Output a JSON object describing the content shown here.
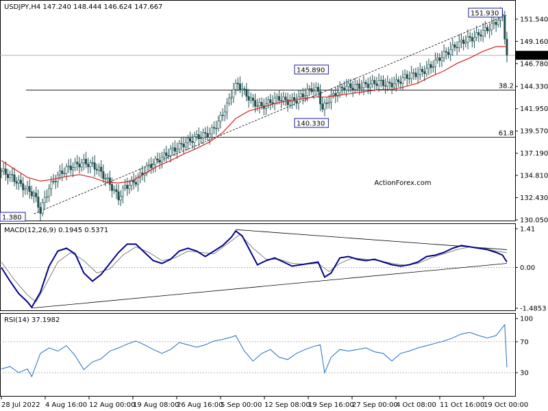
{
  "chart_data": [
    {
      "panel": "price",
      "type": "candlestick",
      "title": "USDJPY,H4  147.240 148.444 146.624 147.667",
      "watermark": "ActionForex.com",
      "ylim": [
        130.05,
        153.0
      ],
      "y_ticks": [
        "151.540",
        "149.160",
        "146.780",
        "144.330",
        "141.950",
        "139.570",
        "137.190",
        "134.810",
        "132.430",
        "130.050"
      ],
      "x_ticks": [
        "28 Jul 2022",
        "4 Aug 16:00",
        "12 Aug 00:00",
        "19 Aug 08:00",
        "26 Aug 16:00",
        "5 Sep 00:00",
        "12 Sep 08:00",
        "19 Sep 16:00",
        "27 Sep 00:00",
        "4 Oct 08:00",
        "11 Oct 16:00",
        "19 Oct 00:00"
      ],
      "current_price": "147.667",
      "price_series": [
        {
          "x": 0,
          "y": 135.3
        },
        {
          "x": 5,
          "y": 134.6
        },
        {
          "x": 10,
          "y": 133.6
        },
        {
          "x": 15,
          "y": 132.8
        },
        {
          "x": 18,
          "y": 131.0
        },
        {
          "x": 22,
          "y": 133.5
        },
        {
          "x": 26,
          "y": 134.8
        },
        {
          "x": 30,
          "y": 135.5
        },
        {
          "x": 34,
          "y": 135.9
        },
        {
          "x": 38,
          "y": 136.2
        },
        {
          "x": 42,
          "y": 135.9
        },
        {
          "x": 45,
          "y": 135.4
        },
        {
          "x": 50,
          "y": 133.9
        },
        {
          "x": 54,
          "y": 132.4
        },
        {
          "x": 57,
          "y": 133.6
        },
        {
          "x": 62,
          "y": 134.2
        },
        {
          "x": 67,
          "y": 135.6
        },
        {
          "x": 72,
          "y": 136.4
        },
        {
          "x": 78,
          "y": 137.4
        },
        {
          "x": 84,
          "y": 138.2
        },
        {
          "x": 90,
          "y": 138.9
        },
        {
          "x": 96,
          "y": 139.3
        },
        {
          "x": 100,
          "y": 140.5
        },
        {
          "x": 104,
          "y": 142.3
        },
        {
          "x": 107,
          "y": 144.1
        },
        {
          "x": 109,
          "y": 144.6
        },
        {
          "x": 112,
          "y": 143.7
        },
        {
          "x": 116,
          "y": 142.6
        },
        {
          "x": 120,
          "y": 142.2
        },
        {
          "x": 124,
          "y": 142.7
        },
        {
          "x": 128,
          "y": 143.1
        },
        {
          "x": 132,
          "y": 142.7
        },
        {
          "x": 136,
          "y": 142.9
        },
        {
          "x": 140,
          "y": 143.6
        },
        {
          "x": 143,
          "y": 144.1
        },
        {
          "x": 146,
          "y": 143.8
        },
        {
          "x": 148,
          "y": 141.8
        },
        {
          "x": 150,
          "y": 142.7
        },
        {
          "x": 154,
          "y": 143.6
        },
        {
          "x": 158,
          "y": 144.3
        },
        {
          "x": 162,
          "y": 144.3
        },
        {
          "x": 166,
          "y": 144.4
        },
        {
          "x": 170,
          "y": 144.6
        },
        {
          "x": 174,
          "y": 144.8
        },
        {
          "x": 178,
          "y": 144.5
        },
        {
          "x": 182,
          "y": 144.7
        },
        {
          "x": 186,
          "y": 145.3
        },
        {
          "x": 190,
          "y": 145.6
        },
        {
          "x": 194,
          "y": 145.9
        },
        {
          "x": 198,
          "y": 146.5
        },
        {
          "x": 202,
          "y": 147.4
        },
        {
          "x": 206,
          "y": 148.1
        },
        {
          "x": 210,
          "y": 148.8
        },
        {
          "x": 214,
          "y": 149.3
        },
        {
          "x": 218,
          "y": 149.6
        },
        {
          "x": 222,
          "y": 150.2
        },
        {
          "x": 226,
          "y": 150.8
        },
        {
          "x": 229,
          "y": 151.5
        },
        {
          "x": 231,
          "y": 151.9
        },
        {
          "x": 233,
          "y": 147.6
        }
      ],
      "ma_series": [
        {
          "x": 0,
          "y": 136.4
        },
        {
          "x": 6,
          "y": 135.5
        },
        {
          "x": 12,
          "y": 134.6
        },
        {
          "x": 18,
          "y": 134.2
        },
        {
          "x": 24,
          "y": 134.4
        },
        {
          "x": 30,
          "y": 134.7
        },
        {
          "x": 36,
          "y": 134.9
        },
        {
          "x": 42,
          "y": 134.6
        },
        {
          "x": 48,
          "y": 134.1
        },
        {
          "x": 54,
          "y": 134.0
        },
        {
          "x": 60,
          "y": 134.2
        },
        {
          "x": 66,
          "y": 135.0
        },
        {
          "x": 72,
          "y": 135.8
        },
        {
          "x": 78,
          "y": 136.4
        },
        {
          "x": 84,
          "y": 137.1
        },
        {
          "x": 90,
          "y": 137.7
        },
        {
          "x": 96,
          "y": 138.4
        },
        {
          "x": 102,
          "y": 139.4
        },
        {
          "x": 108,
          "y": 140.9
        },
        {
          "x": 114,
          "y": 141.7
        },
        {
          "x": 120,
          "y": 142.1
        },
        {
          "x": 126,
          "y": 142.5
        },
        {
          "x": 132,
          "y": 142.8
        },
        {
          "x": 138,
          "y": 143.0
        },
        {
          "x": 144,
          "y": 143.2
        },
        {
          "x": 150,
          "y": 143.2
        },
        {
          "x": 156,
          "y": 143.4
        },
        {
          "x": 162,
          "y": 143.6
        },
        {
          "x": 168,
          "y": 143.8
        },
        {
          "x": 174,
          "y": 144.0
        },
        {
          "x": 180,
          "y": 144.0
        },
        {
          "x": 186,
          "y": 144.3
        },
        {
          "x": 192,
          "y": 144.7
        },
        {
          "x": 198,
          "y": 145.4
        },
        {
          "x": 204,
          "y": 146.0
        },
        {
          "x": 210,
          "y": 146.8
        },
        {
          "x": 216,
          "y": 147.4
        },
        {
          "x": 222,
          "y": 148.1
        },
        {
          "x": 228,
          "y": 148.6
        },
        {
          "x": 233,
          "y": 148.6
        }
      ],
      "price_labels": [
        {
          "text": "151.930",
          "x": 226,
          "y": 151.93
        },
        {
          "text": "145.890",
          "x": 146,
          "y": 145.89
        },
        {
          "text": "140.330",
          "x": 146,
          "y": 140.33
        },
        {
          "text": "1.380",
          "x": 0,
          "y": 130.38
        }
      ],
      "fib_levels": [
        {
          "label": "38.2",
          "y": 143.95
        },
        {
          "label": "61.8",
          "y": 138.9
        }
      ],
      "trend_line": [
        {
          "x": 15,
          "y": 130.7
        },
        {
          "x": 233,
          "y": 152.0
        }
      ]
    },
    {
      "panel": "macd",
      "type": "line",
      "label": "MACD(12,26,9) 0.1945 0.5371",
      "ylim": [
        -1.4853,
        1.41
      ],
      "y_ticks": [
        "1.41",
        "0.00",
        "-1.4853"
      ],
      "macd_series": [
        {
          "x": 0,
          "y": 0.0
        },
        {
          "x": 4,
          "y": -0.5
        },
        {
          "x": 8,
          "y": -0.95
        },
        {
          "x": 12,
          "y": -1.25
        },
        {
          "x": 14,
          "y": -1.45
        },
        {
          "x": 18,
          "y": -0.9
        },
        {
          "x": 22,
          "y": 0.05
        },
        {
          "x": 26,
          "y": 0.6
        },
        {
          "x": 30,
          "y": 0.7
        },
        {
          "x": 34,
          "y": 0.5
        },
        {
          "x": 38,
          "y": -0.2
        },
        {
          "x": 42,
          "y": -0.5
        },
        {
          "x": 46,
          "y": -0.25
        },
        {
          "x": 50,
          "y": 0.15
        },
        {
          "x": 54,
          "y": 0.55
        },
        {
          "x": 58,
          "y": 0.85
        },
        {
          "x": 62,
          "y": 0.85
        },
        {
          "x": 66,
          "y": 0.55
        },
        {
          "x": 70,
          "y": 0.25
        },
        {
          "x": 74,
          "y": 0.15
        },
        {
          "x": 78,
          "y": 0.3
        },
        {
          "x": 82,
          "y": 0.6
        },
        {
          "x": 86,
          "y": 0.7
        },
        {
          "x": 90,
          "y": 0.6
        },
        {
          "x": 94,
          "y": 0.4
        },
        {
          "x": 98,
          "y": 0.6
        },
        {
          "x": 102,
          "y": 0.8
        },
        {
          "x": 106,
          "y": 1.1
        },
        {
          "x": 108,
          "y": 1.33
        },
        {
          "x": 111,
          "y": 1.15
        },
        {
          "x": 114,
          "y": 0.7
        },
        {
          "x": 118,
          "y": 0.1
        },
        {
          "x": 122,
          "y": 0.25
        },
        {
          "x": 126,
          "y": 0.35
        },
        {
          "x": 130,
          "y": 0.2
        },
        {
          "x": 134,
          "y": 0.05
        },
        {
          "x": 138,
          "y": 0.1
        },
        {
          "x": 142,
          "y": 0.15
        },
        {
          "x": 146,
          "y": 0.2
        },
        {
          "x": 149,
          "y": -0.35
        },
        {
          "x": 152,
          "y": -0.2
        },
        {
          "x": 156,
          "y": 0.35
        },
        {
          "x": 160,
          "y": 0.4
        },
        {
          "x": 164,
          "y": 0.3
        },
        {
          "x": 168,
          "y": 0.25
        },
        {
          "x": 172,
          "y": 0.3
        },
        {
          "x": 176,
          "y": 0.2
        },
        {
          "x": 180,
          "y": 0.1
        },
        {
          "x": 184,
          "y": 0.05
        },
        {
          "x": 188,
          "y": 0.1
        },
        {
          "x": 192,
          "y": 0.2
        },
        {
          "x": 196,
          "y": 0.4
        },
        {
          "x": 200,
          "y": 0.45
        },
        {
          "x": 204,
          "y": 0.55
        },
        {
          "x": 208,
          "y": 0.7
        },
        {
          "x": 212,
          "y": 0.8
        },
        {
          "x": 216,
          "y": 0.75
        },
        {
          "x": 220,
          "y": 0.7
        },
        {
          "x": 224,
          "y": 0.65
        },
        {
          "x": 228,
          "y": 0.55
        },
        {
          "x": 231,
          "y": 0.45
        },
        {
          "x": 233,
          "y": 0.2
        }
      ],
      "signal_series": [
        {
          "x": 0,
          "y": 0.2
        },
        {
          "x": 6,
          "y": -0.45
        },
        {
          "x": 12,
          "y": -1.0
        },
        {
          "x": 16,
          "y": -1.25
        },
        {
          "x": 20,
          "y": -0.7
        },
        {
          "x": 26,
          "y": 0.2
        },
        {
          "x": 32,
          "y": 0.55
        },
        {
          "x": 38,
          "y": 0.25
        },
        {
          "x": 44,
          "y": -0.2
        },
        {
          "x": 50,
          "y": -0.05
        },
        {
          "x": 56,
          "y": 0.45
        },
        {
          "x": 62,
          "y": 0.75
        },
        {
          "x": 68,
          "y": 0.55
        },
        {
          "x": 74,
          "y": 0.25
        },
        {
          "x": 80,
          "y": 0.35
        },
        {
          "x": 86,
          "y": 0.6
        },
        {
          "x": 92,
          "y": 0.55
        },
        {
          "x": 98,
          "y": 0.5
        },
        {
          "x": 104,
          "y": 0.85
        },
        {
          "x": 110,
          "y": 1.2
        },
        {
          "x": 116,
          "y": 0.7
        },
        {
          "x": 122,
          "y": 0.3
        },
        {
          "x": 128,
          "y": 0.3
        },
        {
          "x": 134,
          "y": 0.15
        },
        {
          "x": 140,
          "y": 0.12
        },
        {
          "x": 146,
          "y": 0.15
        },
        {
          "x": 151,
          "y": -0.15
        },
        {
          "x": 156,
          "y": 0.15
        },
        {
          "x": 162,
          "y": 0.35
        },
        {
          "x": 168,
          "y": 0.3
        },
        {
          "x": 174,
          "y": 0.25
        },
        {
          "x": 180,
          "y": 0.15
        },
        {
          "x": 186,
          "y": 0.08
        },
        {
          "x": 192,
          "y": 0.15
        },
        {
          "x": 198,
          "y": 0.35
        },
        {
          "x": 204,
          "y": 0.5
        },
        {
          "x": 210,
          "y": 0.65
        },
        {
          "x": 216,
          "y": 0.75
        },
        {
          "x": 222,
          "y": 0.7
        },
        {
          "x": 228,
          "y": 0.6
        },
        {
          "x": 233,
          "y": 0.54
        }
      ],
      "trend_lines": [
        [
          {
            "x": 14,
            "y": -1.48
          },
          {
            "x": 233,
            "y": 0.15
          }
        ],
        [
          {
            "x": 108,
            "y": 1.38
          },
          {
            "x": 233,
            "y": 0.65
          }
        ]
      ]
    },
    {
      "panel": "rsi",
      "type": "line",
      "label": "RSI(14) 37.1982",
      "ylim": [
        0,
        100
      ],
      "y_ticks": [
        "100",
        "70",
        "30"
      ],
      "rsi_series": [
        {
          "x": 0,
          "y": 35
        },
        {
          "x": 4,
          "y": 38
        },
        {
          "x": 8,
          "y": 30
        },
        {
          "x": 12,
          "y": 35
        },
        {
          "x": 14,
          "y": 25
        },
        {
          "x": 18,
          "y": 55
        },
        {
          "x": 22,
          "y": 62
        },
        {
          "x": 26,
          "y": 58
        },
        {
          "x": 30,
          "y": 65
        },
        {
          "x": 34,
          "y": 52
        },
        {
          "x": 38,
          "y": 34
        },
        {
          "x": 42,
          "y": 44
        },
        {
          "x": 46,
          "y": 48
        },
        {
          "x": 50,
          "y": 58
        },
        {
          "x": 54,
          "y": 62
        },
        {
          "x": 58,
          "y": 67
        },
        {
          "x": 62,
          "y": 71
        },
        {
          "x": 66,
          "y": 66
        },
        {
          "x": 70,
          "y": 60
        },
        {
          "x": 74,
          "y": 55
        },
        {
          "x": 78,
          "y": 60
        },
        {
          "x": 82,
          "y": 69
        },
        {
          "x": 86,
          "y": 66
        },
        {
          "x": 90,
          "y": 63
        },
        {
          "x": 94,
          "y": 66
        },
        {
          "x": 98,
          "y": 71
        },
        {
          "x": 102,
          "y": 73
        },
        {
          "x": 106,
          "y": 76
        },
        {
          "x": 108,
          "y": 78
        },
        {
          "x": 112,
          "y": 58
        },
        {
          "x": 116,
          "y": 45
        },
        {
          "x": 120,
          "y": 55
        },
        {
          "x": 124,
          "y": 60
        },
        {
          "x": 128,
          "y": 50
        },
        {
          "x": 132,
          "y": 47
        },
        {
          "x": 136,
          "y": 55
        },
        {
          "x": 140,
          "y": 60
        },
        {
          "x": 144,
          "y": 64
        },
        {
          "x": 147,
          "y": 66
        },
        {
          "x": 149,
          "y": 30
        },
        {
          "x": 152,
          "y": 50
        },
        {
          "x": 156,
          "y": 60
        },
        {
          "x": 160,
          "y": 58
        },
        {
          "x": 164,
          "y": 60
        },
        {
          "x": 168,
          "y": 62
        },
        {
          "x": 172,
          "y": 57
        },
        {
          "x": 176,
          "y": 55
        },
        {
          "x": 180,
          "y": 45
        },
        {
          "x": 184,
          "y": 55
        },
        {
          "x": 188,
          "y": 58
        },
        {
          "x": 192,
          "y": 62
        },
        {
          "x": 196,
          "y": 65
        },
        {
          "x": 200,
          "y": 68
        },
        {
          "x": 204,
          "y": 71
        },
        {
          "x": 208,
          "y": 75
        },
        {
          "x": 212,
          "y": 80
        },
        {
          "x": 216,
          "y": 82
        },
        {
          "x": 220,
          "y": 78
        },
        {
          "x": 224,
          "y": 75
        },
        {
          "x": 228,
          "y": 78
        },
        {
          "x": 230,
          "y": 85
        },
        {
          "x": 232,
          "y": 92
        },
        {
          "x": 233,
          "y": 37
        }
      ]
    }
  ],
  "colors": {
    "candle": "#1f4e4e",
    "ma": "#d42020",
    "macd": "#00008b",
    "signal": "#808080",
    "rsi": "#1e6bc8",
    "grid": "#000000",
    "watermark": "#c0c0c0",
    "label_border": "#1a1aa0",
    "current_price_bg": "#000000"
  }
}
